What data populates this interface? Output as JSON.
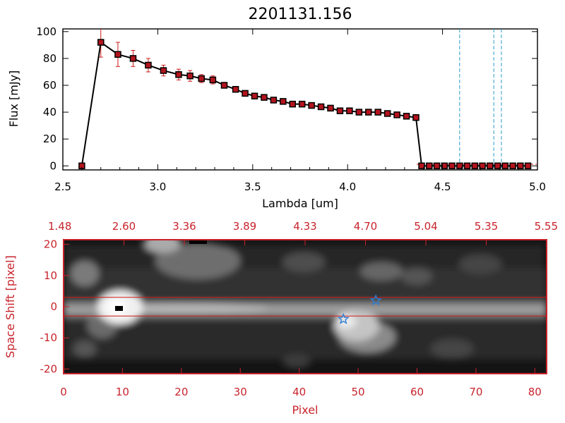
{
  "title": "2201131.156",
  "spectrum": {
    "type": "line",
    "xlabel": "Lambda [um]",
    "ylabel": "Flux [mJy]",
    "xlim": [
      2.5,
      5.0
    ],
    "ylim": [
      -3,
      102
    ],
    "x_tick_labels": [
      "2.5",
      "3.0",
      "3.5",
      "4.0",
      "4.5",
      "5.0"
    ],
    "x_tick_values": [
      2.5,
      3.0,
      3.5,
      4.0,
      4.5,
      5.0
    ],
    "y_tick_labels": [
      "0",
      "20",
      "40",
      "60",
      "80",
      "100"
    ],
    "y_tick_values": [
      0,
      20,
      40,
      60,
      80,
      100
    ],
    "x": [
      2.6,
      2.7,
      2.79,
      2.87,
      2.95,
      3.03,
      3.11,
      3.17,
      3.23,
      3.29,
      3.35,
      3.41,
      3.46,
      3.51,
      3.56,
      3.61,
      3.66,
      3.71,
      3.76,
      3.81,
      3.86,
      3.91,
      3.96,
      4.01,
      4.06,
      4.11,
      4.16,
      4.21,
      4.26,
      4.31,
      4.36,
      4.39,
      4.43,
      4.47,
      4.51,
      4.55,
      4.59,
      4.63,
      4.67,
      4.71,
      4.75,
      4.79,
      4.83,
      4.87,
      4.91,
      4.95
    ],
    "y": [
      0,
      92,
      83,
      80,
      75,
      71,
      68,
      67,
      65,
      64,
      60,
      57,
      54,
      52,
      51,
      49,
      48,
      46,
      46,
      45,
      44,
      43,
      41,
      41,
      40,
      40,
      40,
      39,
      38,
      37,
      36,
      0,
      0,
      0,
      0,
      0,
      0,
      0,
      0,
      0,
      0,
      0,
      0,
      0,
      0,
      0
    ],
    "err": [
      0,
      11,
      9,
      6,
      5,
      4,
      4,
      4,
      3,
      3,
      0,
      0,
      0,
      0,
      0,
      0,
      0,
      0,
      0,
      0,
      0,
      0,
      0,
      0,
      0,
      0,
      0,
      0,
      0,
      0,
      0,
      0,
      0,
      0,
      0,
      0,
      0,
      0,
      0,
      0,
      0,
      0,
      0,
      0,
      0,
      0
    ],
    "vlines": [
      4.59,
      4.77,
      4.81
    ],
    "colors": {
      "line": "#000000",
      "marker": "#b3141e",
      "errorbar": "#d01818",
      "vline": "#2a9bc8",
      "baseline": "#d01818"
    }
  },
  "image_panel": {
    "type": "heatmap",
    "xlabel": "Pixel",
    "ylabel": "Space Shift [pixel]",
    "xlim": [
      0,
      82
    ],
    "ylim": [
      -21.5,
      21.5
    ],
    "x_tick_labels": [
      "0",
      "10",
      "20",
      "30",
      "40",
      "50",
      "60",
      "70",
      "80"
    ],
    "x_tick_values": [
      0,
      10,
      20,
      30,
      40,
      50,
      60,
      70,
      80
    ],
    "y_tick_labels": [
      "-20",
      "-10",
      "0",
      "10",
      "20"
    ],
    "y_tick_values": [
      -20,
      -10,
      0,
      10,
      20
    ],
    "top_axis_labels": [
      "1.48",
      "2.60",
      "3.36",
      "3.89",
      "4.33",
      "4.70",
      "5.04",
      "5.35",
      "5.55"
    ],
    "hlines": [
      3,
      -3
    ],
    "stars": [
      {
        "x": 53,
        "y": 2
      },
      {
        "x": 47.5,
        "y": -4
      }
    ],
    "colors": {
      "frame": "#c8232c",
      "star": "#2f7fd6",
      "hline": "#d01818"
    }
  }
}
